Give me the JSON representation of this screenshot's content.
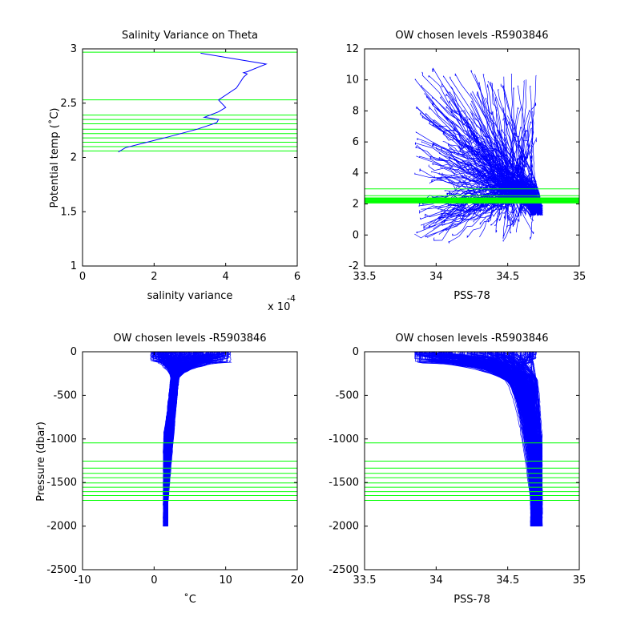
{
  "figure": {
    "background": "#ffffff"
  },
  "colors": {
    "profiles": "#0000ff",
    "levels": "#00ff00",
    "axes": "#000000"
  },
  "chart_data": [
    {
      "id": "variance",
      "type": "line",
      "title": "Salinity Variance on Theta",
      "xlabel": "salinity variance",
      "ylabel": "Potential temp (˚C)",
      "xlim": [
        0,
        0.0006
      ],
      "ylim": [
        1,
        3
      ],
      "x_exponent_label": "x 10",
      "x_exponent_power": "-4",
      "xticks": [
        0,
        0.0002,
        0.0004,
        0.0006
      ],
      "xtick_labels": [
        "0",
        "2",
        "4",
        "6"
      ],
      "yticks": [
        1,
        1.5,
        2,
        2.5,
        3
      ],
      "ytick_labels": [
        "1",
        "1.5",
        "2",
        "2.5",
        "3"
      ],
      "series": [
        {
          "x": [
            0.0001,
            0.00012,
            0.00018,
            0.00024,
            0.00032,
            0.000375,
            0.00038,
            0.00034,
            0.00038,
            0.0004,
            0.00038,
            0.00043,
            0.00045,
            0.00046,
            0.00045,
            0.00046,
            0.000513,
            0.00033
          ],
          "y": [
            2.05,
            2.09,
            2.14,
            2.19,
            2.26,
            2.32,
            2.35,
            2.37,
            2.42,
            2.46,
            2.53,
            2.64,
            2.74,
            2.77,
            2.78,
            2.79,
            2.86,
            2.96
          ]
        }
      ],
      "hlines": [
        2.06,
        2.1,
        2.14,
        2.18,
        2.22,
        2.26,
        2.31,
        2.35,
        2.39,
        2.53,
        2.97
      ]
    },
    {
      "id": "ts",
      "type": "line",
      "title": "OW chosen levels -R5903846",
      "xlabel": "PSS-78",
      "ylabel": "",
      "xlim": [
        33.5,
        35
      ],
      "ylim": [
        -2,
        12
      ],
      "xticks": [
        33.5,
        34,
        34.5,
        35
      ],
      "xtick_labels": [
        "33.5",
        "34",
        "34.5",
        "35"
      ],
      "yticks": [
        -2,
        0,
        2,
        4,
        6,
        8,
        10,
        12
      ],
      "ytick_labels": [
        "-2",
        "0",
        "2",
        "4",
        "6",
        "8",
        "10",
        "12"
      ],
      "profile_count": 300,
      "hlines": [
        2.06,
        2.1,
        2.14,
        2.18,
        2.22,
        2.26,
        2.31,
        2.35,
        2.39,
        2.53,
        2.97
      ]
    },
    {
      "id": "pt",
      "type": "line",
      "title": "OW chosen levels -R5903846",
      "xlabel": "˚C",
      "ylabel": "Pressure (dbar)",
      "xlim": [
        -10,
        20
      ],
      "ylim": [
        -2500,
        0
      ],
      "xticks": [
        -10,
        0,
        10,
        20
      ],
      "xtick_labels": [
        "-10",
        "0",
        "10",
        "20"
      ],
      "yticks": [
        -2500,
        -2000,
        -1500,
        -1000,
        -500,
        0
      ],
      "ytick_labels": [
        "-2500",
        "-2000",
        "-1500",
        "-1000",
        "-500",
        "0"
      ],
      "profile_count": 300,
      "hlines": [
        -1045,
        -1255,
        -1335,
        -1395,
        -1445,
        -1505,
        -1555,
        -1605,
        -1650,
        -1705
      ]
    },
    {
      "id": "ps",
      "type": "line",
      "title": "OW chosen levels -R5903846",
      "xlabel": "PSS-78",
      "ylabel": "",
      "xlim": [
        33.5,
        35
      ],
      "ylim": [
        -2500,
        0
      ],
      "xticks": [
        33.5,
        34,
        34.5,
        35
      ],
      "xtick_labels": [
        "33.5",
        "34",
        "34.5",
        "35"
      ],
      "yticks": [
        -2500,
        -2000,
        -1500,
        -1000,
        -500,
        0
      ],
      "ytick_labels": [
        "-2500",
        "-2000",
        "-1500",
        "-1000",
        "-500",
        "0"
      ],
      "profile_count": 300,
      "hlines": [
        -1045,
        -1255,
        -1335,
        -1395,
        -1445,
        -1505,
        -1555,
        -1605,
        -1650,
        -1705
      ]
    }
  ]
}
